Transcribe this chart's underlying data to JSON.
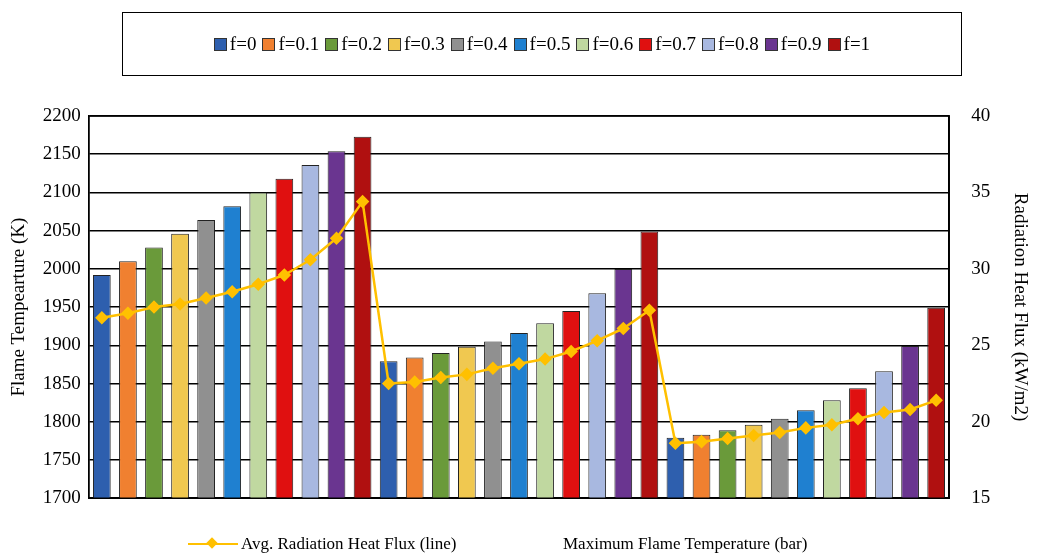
{
  "chart_data": {
    "type": "bar",
    "ylabel": "Flame Tempearture (K)",
    "y2label": "Radiation Heat Flux (kW/m2)",
    "categories": [
      null,
      null,
      null,
      null,
      null,
      null,
      null,
      null,
      null,
      null,
      null,
      null,
      null,
      null,
      null,
      null,
      null,
      null,
      null,
      null,
      null,
      null,
      null,
      null,
      null,
      null,
      null,
      null,
      null,
      null,
      null,
      null,
      null
    ],
    "ylim": [
      1700,
      2200
    ],
    "yticks": [
      1700,
      1750,
      1800,
      1850,
      1900,
      1950,
      2000,
      2050,
      2100,
      2150,
      2200
    ],
    "y2lim": [
      15,
      40
    ],
    "y2ticks": [
      15,
      20,
      25,
      30,
      35,
      40
    ],
    "grid": "y",
    "legend": "top",
    "annotations": [
      "Maximum Flame Temperature (bar)"
    ],
    "series": [
      {
        "name": "f=0",
        "color": "#2e5fae",
        "values": [
          1992,
          null,
          null,
          null,
          null,
          null,
          null,
          null,
          null,
          null,
          null,
          1879,
          null,
          null,
          null,
          null,
          null,
          null,
          null,
          null,
          null,
          null,
          1779,
          null,
          null,
          null,
          null,
          null,
          null,
          null,
          null,
          null,
          null
        ]
      },
      {
        "name": "f=0.1",
        "color": "#f08030",
        "values": [
          null,
          2010,
          null,
          null,
          null,
          null,
          null,
          null,
          null,
          null,
          null,
          null,
          1884,
          null,
          null,
          null,
          null,
          null,
          null,
          null,
          null,
          null,
          null,
          1783,
          null,
          null,
          null,
          null,
          null,
          null,
          null,
          null,
          null
        ]
      },
      {
        "name": "f=0.2",
        "color": "#6a9a3a",
        "values": [
          null,
          null,
          2028,
          null,
          null,
          null,
          null,
          null,
          null,
          null,
          null,
          null,
          null,
          1890,
          null,
          null,
          null,
          null,
          null,
          null,
          null,
          null,
          null,
          null,
          1789,
          null,
          null,
          null,
          null,
          null,
          null,
          null,
          null
        ]
      },
      {
        "name": "f=0.3",
        "color": "#f0c850",
        "values": [
          null,
          null,
          null,
          2046,
          null,
          null,
          null,
          null,
          null,
          null,
          null,
          null,
          null,
          null,
          1898,
          null,
          null,
          null,
          null,
          null,
          null,
          null,
          null,
          null,
          null,
          1796,
          null,
          null,
          null,
          null,
          null,
          null,
          null
        ]
      },
      {
        "name": "f=0.4",
        "color": "#909090",
        "values": [
          null,
          null,
          null,
          null,
          2064,
          null,
          null,
          null,
          null,
          null,
          null,
          null,
          null,
          null,
          null,
          1905,
          null,
          null,
          null,
          null,
          null,
          null,
          null,
          null,
          null,
          null,
          1804,
          null,
          null,
          null,
          null,
          null,
          null
        ]
      },
      {
        "name": "f=0.5",
        "color": "#1f80d0",
        "values": [
          null,
          null,
          null,
          null,
          null,
          2082,
          null,
          null,
          null,
          null,
          null,
          null,
          null,
          null,
          null,
          null,
          1916,
          null,
          null,
          null,
          null,
          null,
          null,
          null,
          null,
          null,
          null,
          1815,
          null,
          null,
          null,
          null,
          null
        ]
      },
      {
        "name": "f=0.6",
        "color": "#c0d8a0",
        "values": [
          null,
          null,
          null,
          null,
          null,
          null,
          2100,
          null,
          null,
          null,
          null,
          null,
          null,
          null,
          null,
          null,
          null,
          1929,
          null,
          null,
          null,
          null,
          null,
          null,
          null,
          null,
          null,
          null,
          1828,
          null,
          null,
          null,
          null
        ]
      },
      {
        "name": "f=0.7",
        "color": "#e01010",
        "values": [
          null,
          null,
          null,
          null,
          null,
          null,
          null,
          2118,
          null,
          null,
          null,
          null,
          null,
          null,
          null,
          null,
          null,
          null,
          1945,
          null,
          null,
          null,
          null,
          null,
          null,
          null,
          null,
          null,
          null,
          1844,
          null,
          null,
          null
        ]
      },
      {
        "name": "f=0.8",
        "color": "#a8b8e0",
        "values": [
          null,
          null,
          null,
          null,
          null,
          null,
          null,
          null,
          2136,
          null,
          null,
          null,
          null,
          null,
          null,
          null,
          null,
          null,
          null,
          1968,
          null,
          null,
          null,
          null,
          null,
          null,
          null,
          null,
          null,
          null,
          1866,
          null,
          null
        ]
      },
      {
        "name": "f=0.9",
        "color": "#6a3590",
        "values": [
          null,
          null,
          null,
          null,
          null,
          null,
          null,
          null,
          null,
          2154,
          null,
          null,
          null,
          null,
          null,
          null,
          null,
          null,
          null,
          null,
          2000,
          null,
          null,
          null,
          null,
          null,
          null,
          null,
          null,
          null,
          null,
          1899,
          null
        ]
      },
      {
        "name": "f=1",
        "color": "#b01010",
        "values": [
          null,
          null,
          null,
          null,
          null,
          null,
          null,
          null,
          null,
          null,
          2173,
          null,
          null,
          null,
          null,
          null,
          null,
          null,
          null,
          null,
          null,
          2049,
          null,
          null,
          null,
          null,
          null,
          null,
          null,
          null,
          null,
          null,
          1949
        ]
      },
      {
        "name": "Avg. Radiation Heat Flux (line)",
        "type": "line",
        "axis": "y2",
        "marker": "diamond",
        "color": "#ffc000",
        "values": [
          26.8,
          27.1,
          27.5,
          27.7,
          28.1,
          28.5,
          29.0,
          29.6,
          30.6,
          32.0,
          34.4,
          22.5,
          22.6,
          22.9,
          23.1,
          23.5,
          23.8,
          24.1,
          24.6,
          25.3,
          26.1,
          27.3,
          18.6,
          18.7,
          18.9,
          19.1,
          19.3,
          19.6,
          19.8,
          20.2,
          20.6,
          20.8,
          21.4
        ]
      }
    ]
  }
}
